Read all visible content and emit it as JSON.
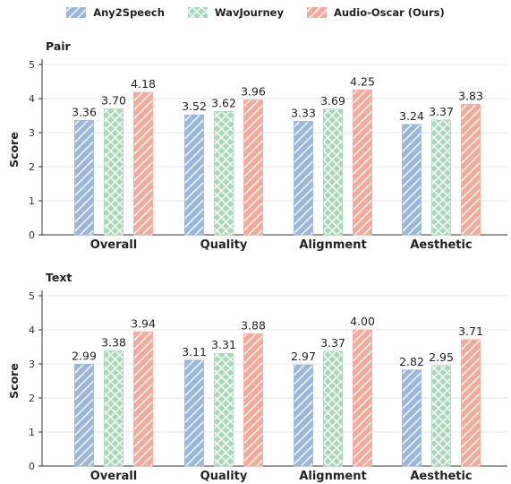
{
  "legend": {
    "items": [
      {
        "label": "Any2Speech",
        "color": "#9bb7dc",
        "pattern": "diag"
      },
      {
        "label": "WavJourney",
        "color": "#a8d8b9",
        "pattern": "cross"
      },
      {
        "label": "Audio-Oscar (Ours)",
        "color": "#f2aa9a",
        "pattern": "diag"
      }
    ]
  },
  "chart_data": [
    {
      "type": "bar",
      "title": "Pair",
      "ylabel": "Score",
      "ylim": [
        0,
        5
      ],
      "yticks": [
        0,
        1,
        2,
        3,
        4,
        5
      ],
      "categories": [
        "Overall",
        "Quality",
        "Alignment",
        "Aesthetic"
      ],
      "grid": true,
      "series": [
        {
          "name": "Any2Speech",
          "values": [
            3.36,
            3.52,
            3.33,
            3.24
          ],
          "labels": [
            "3.36",
            "3.52",
            "3.33",
            "3.24"
          ]
        },
        {
          "name": "WavJourney",
          "values": [
            3.7,
            3.62,
            3.69,
            3.37
          ],
          "labels": [
            "3.70",
            "3.62",
            "3.69",
            "3.37"
          ]
        },
        {
          "name": "Audio-Oscar (Ours)",
          "values": [
            4.18,
            3.96,
            4.25,
            3.83
          ],
          "labels": [
            "4.18",
            "3.96",
            "4.25",
            "3.83"
          ]
        }
      ]
    },
    {
      "type": "bar",
      "title": "Text",
      "ylabel": "Score",
      "ylim": [
        0,
        5
      ],
      "yticks": [
        0,
        1,
        2,
        3,
        4,
        5
      ],
      "categories": [
        "Overall",
        "Quality",
        "Alignment",
        "Aesthetic"
      ],
      "grid": true,
      "series": [
        {
          "name": "Any2Speech",
          "values": [
            2.99,
            3.11,
            2.97,
            2.82
          ],
          "labels": [
            "2.99",
            "3.11",
            "2.97",
            "2.82"
          ]
        },
        {
          "name": "WavJourney",
          "values": [
            3.38,
            3.31,
            3.37,
            2.95
          ],
          "labels": [
            "3.38",
            "3.31",
            "3.37",
            "2.95"
          ]
        },
        {
          "name": "Audio-Oscar (Ours)",
          "values": [
            3.94,
            3.88,
            4.0,
            3.71
          ],
          "labels": [
            "3.94",
            "3.88",
            "4.00",
            "3.71"
          ]
        }
      ]
    }
  ]
}
